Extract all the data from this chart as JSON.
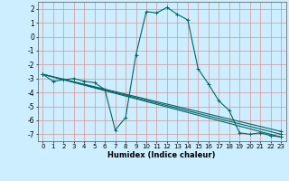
{
  "xlabel": "Humidex (Indice chaleur)",
  "ylabel": "",
  "bg_color": "#cceeff",
  "grid_color": "#e09090",
  "line_color": "#006666",
  "xlim": [
    -0.5,
    23.5
  ],
  "ylim": [
    -7.5,
    2.5
  ],
  "yticks": [
    2,
    1,
    0,
    -1,
    -2,
    -3,
    -4,
    -5,
    -6,
    -7
  ],
  "xticks": [
    0,
    1,
    2,
    3,
    4,
    5,
    6,
    7,
    8,
    9,
    10,
    11,
    12,
    13,
    14,
    15,
    16,
    17,
    18,
    19,
    20,
    21,
    22,
    23
  ],
  "lines": [
    {
      "x": [
        0,
        1,
        2,
        3,
        4,
        5,
        6,
        7,
        8,
        9,
        10,
        11,
        12,
        13,
        14,
        15,
        16,
        17,
        18,
        19,
        20,
        21,
        22,
        23
      ],
      "y": [
        -2.7,
        -3.2,
        -3.1,
        -3.0,
        -3.2,
        -3.3,
        -3.8,
        -6.7,
        -5.8,
        -1.3,
        1.8,
        1.7,
        2.1,
        1.6,
        1.2,
        -2.3,
        -3.4,
        -4.6,
        -5.3,
        -6.9,
        -7.0,
        -6.9,
        -7.1,
        -7.2
      ]
    },
    {
      "x": [
        0,
        23
      ],
      "y": [
        -2.7,
        -7.2
      ]
    },
    {
      "x": [
        0,
        23
      ],
      "y": [
        -2.7,
        -7.0
      ]
    },
    {
      "x": [
        0,
        23
      ],
      "y": [
        -2.7,
        -6.8
      ]
    }
  ]
}
